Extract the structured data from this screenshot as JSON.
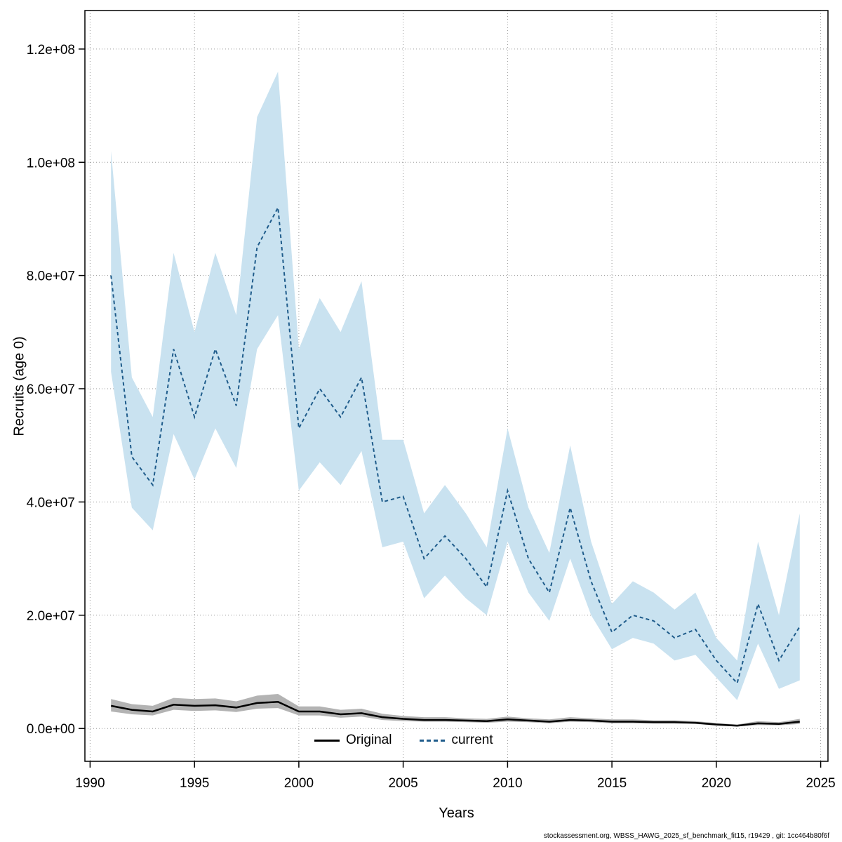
{
  "chart_data": {
    "type": "line",
    "title": "",
    "xlabel": "Years",
    "ylabel": "Recruits (age 0)",
    "xlim": [
      1989.75,
      2025.35
    ],
    "ylim": [
      -5800000,
      126800000
    ],
    "xticks": [
      1990,
      1995,
      2000,
      2005,
      2010,
      2015,
      2020,
      2025
    ],
    "yticks": [
      0,
      20000000,
      40000000,
      60000000,
      80000000,
      100000000,
      120000000
    ],
    "ytick_labels": [
      "0.0e+00",
      "2.0e+07",
      "4.0e+07",
      "6.0e+07",
      "8.0e+07",
      "1.0e+08",
      "1.2e+08"
    ],
    "grid": true,
    "legend_position": "bottom-center-inside",
    "x": [
      1991,
      1992,
      1993,
      1994,
      1995,
      1996,
      1997,
      1998,
      1999,
      2000,
      2001,
      2002,
      2003,
      2004,
      2005,
      2006,
      2007,
      2008,
      2009,
      2010,
      2011,
      2012,
      2013,
      2014,
      2015,
      2016,
      2017,
      2018,
      2019,
      2020,
      2021,
      2022,
      2023,
      2024
    ],
    "series": [
      {
        "name": "Original",
        "color": "#000000",
        "band_color": "#b3b3b3",
        "dash": "",
        "width": 2.5,
        "values": [
          4000000,
          3300000,
          3000000,
          4200000,
          4000000,
          4100000,
          3700000,
          4500000,
          4700000,
          3000000,
          3000000,
          2500000,
          2700000,
          2000000,
          1700000,
          1500000,
          1500000,
          1400000,
          1300000,
          1600000,
          1400000,
          1200000,
          1500000,
          1400000,
          1200000,
          1200000,
          1100000,
          1100000,
          1000000,
          700000,
          500000,
          900000,
          800000,
          1200000
        ],
        "lower": [
          3000000,
          2500000,
          2300000,
          3300000,
          3100000,
          3200000,
          2900000,
          3500000,
          3600000,
          2300000,
          2300000,
          1900000,
          2100000,
          1500000,
          1300000,
          1200000,
          1200000,
          1100000,
          1000000,
          1200000,
          1100000,
          900000,
          1200000,
          1100000,
          900000,
          900000,
          850000,
          850000,
          800000,
          500000,
          350000,
          600000,
          550000,
          800000
        ],
        "upper": [
          5200000,
          4300000,
          4000000,
          5400000,
          5200000,
          5300000,
          4800000,
          5800000,
          6100000,
          3900000,
          3900000,
          3300000,
          3500000,
          2600000,
          2200000,
          2000000,
          2000000,
          1800000,
          1700000,
          2100000,
          1800000,
          1600000,
          2000000,
          1800000,
          1600000,
          1600000,
          1450000,
          1450000,
          1300000,
          950000,
          700000,
          1300000,
          1100000,
          1700000
        ]
      },
      {
        "name": "current",
        "color": "#1f5c8b",
        "band_color": "#c9e2f0",
        "dash": "5 4",
        "width": 2,
        "values": [
          80000000,
          48000000,
          43000000,
          67000000,
          55000000,
          67000000,
          57000000,
          85000000,
          92000000,
          53000000,
          60000000,
          55000000,
          62000000,
          40000000,
          41000000,
          30000000,
          34000000,
          30000000,
          25000000,
          42000000,
          30000000,
          24000000,
          39000000,
          26000000,
          17000000,
          20000000,
          19000000,
          16000000,
          17500000,
          12000000,
          8000000,
          22000000,
          12000000,
          18000000
        ],
        "lower": [
          63000000,
          39000000,
          35000000,
          52000000,
          44000000,
          53000000,
          46000000,
          67000000,
          73000000,
          42000000,
          47000000,
          43000000,
          49000000,
          32000000,
          33000000,
          23000000,
          27000000,
          23000000,
          20000000,
          33000000,
          24000000,
          19000000,
          30000000,
          20000000,
          14000000,
          16000000,
          15000000,
          12000000,
          13000000,
          9000000,
          5000000,
          15000000,
          7000000,
          8500000
        ],
        "upper": [
          102000000,
          62000000,
          55000000,
          84000000,
          70000000,
          84000000,
          73000000,
          108000000,
          116000000,
          67000000,
          76000000,
          70000000,
          79000000,
          51000000,
          51000000,
          38000000,
          43000000,
          38000000,
          32000000,
          53000000,
          39000000,
          31000000,
          50000000,
          33000000,
          22000000,
          26000000,
          24000000,
          21000000,
          24000000,
          16000000,
          12000000,
          33000000,
          20000000,
          38000000
        ]
      }
    ]
  },
  "legend": {
    "original_label": "Original",
    "current_label": "current"
  },
  "footer": {
    "text": "stockassessment.org, WBSS_HAWG_2025_sf_benchmark_fit15, r19429 , git: 1cc464b80f6f"
  }
}
